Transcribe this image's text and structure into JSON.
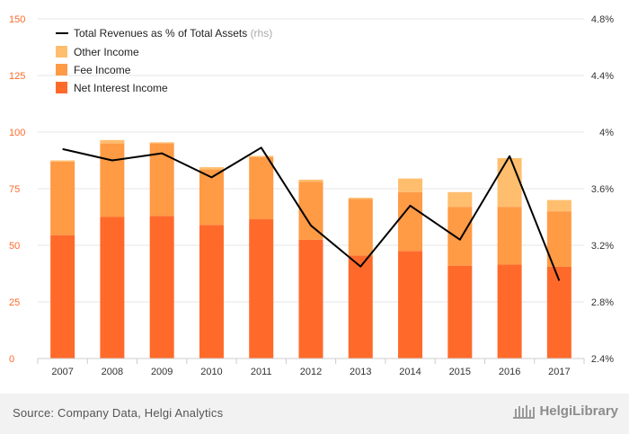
{
  "chart_data": {
    "type": "bar",
    "stacked": true,
    "categories": [
      "2007",
      "2008",
      "2009",
      "2010",
      "2011",
      "2012",
      "2013",
      "2014",
      "2015",
      "2016",
      "2017"
    ],
    "series": [
      {
        "name": "Net Interest Income",
        "color": "#ff6a2b",
        "values": [
          54.5,
          62.5,
          63,
          59,
          61.5,
          52.5,
          45.5,
          47.5,
          41,
          41.5,
          40.5
        ]
      },
      {
        "name": "Fee Income",
        "color": "#ff9a45",
        "values": [
          32.5,
          32.5,
          32,
          24.5,
          27.5,
          25.5,
          25,
          26,
          26,
          25.5,
          24.5
        ]
      },
      {
        "name": "Other Income",
        "color": "#ffbe6e",
        "values": [
          0.5,
          1.5,
          0.5,
          1,
          0.5,
          1,
          0.5,
          6,
          6.5,
          21.5,
          5
        ]
      }
    ],
    "line": {
      "name": "Total Revenues as % of Total Assets",
      "legend_suffix": "(rhs)",
      "color": "#000000",
      "values": [
        3.88,
        3.8,
        3.85,
        3.68,
        3.89,
        3.34,
        3.05,
        3.48,
        3.24,
        3.83,
        2.95
      ]
    },
    "y_left": {
      "min": 0,
      "max": 150,
      "ticks": [
        0,
        25,
        50,
        75,
        100,
        125,
        150
      ]
    },
    "y_right": {
      "min": 2.4,
      "max": 4.8,
      "ticks": [
        "2.4%",
        "2.8%",
        "3.2%",
        "3.6%",
        "4%",
        "4.4%",
        "4.8%"
      ]
    },
    "legend_position": "top-left",
    "grid": true
  },
  "footer": {
    "source": "Source: Company Data, Helgi Analytics",
    "brand": "HelgiLibrary"
  },
  "colors": {
    "left_axis_text": "#ff6a2b",
    "right_axis_text": "#333333",
    "grid": "#e6e6e6",
    "footer_bg": "#f2f2f2"
  }
}
